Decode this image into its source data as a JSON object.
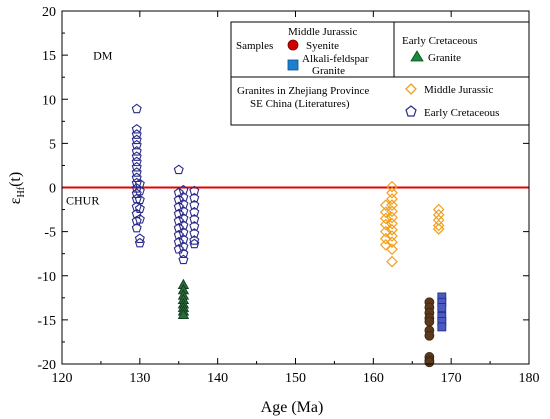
{
  "chart_data": {
    "type": "scatter",
    "xlabel": "Age (Ma)",
    "ylabel_main": "ε",
    "ylabel_sub": "Hf",
    "ylabel_tail": "(t)",
    "xlim": [
      120,
      180
    ],
    "ylim": [
      -20,
      20
    ],
    "x_ticks": [
      120,
      130,
      140,
      150,
      160,
      170,
      180
    ],
    "y_ticks": [
      -20,
      -15,
      -10,
      -5,
      0,
      5,
      10,
      15,
      20
    ],
    "grid": false,
    "chur_line": {
      "y": 0,
      "label": "CHUR",
      "color": "#e60000"
    },
    "annotations": [
      {
        "id": "dm",
        "text": "DM",
        "x": 124,
        "y": 14.5
      }
    ],
    "legend": {
      "placement": "top-right",
      "samples_title": "Samples",
      "middle_jurassic_title": "Middle Jurassic",
      "syenite_label": "Syenite",
      "alkali_label_line1": "Alkali-feldspar",
      "alkali_label_line2": "Granite",
      "early_cretaceous_title": "Early Cretaceous",
      "granite_label": "Granite",
      "literature_line1": "Granites in Zhejiang Province",
      "literature_line2": "SE China (Literatures)",
      "lit_mj_label": "Middle Jurassic",
      "lit_ec_label": "Early Cretaceous"
    },
    "series": [
      {
        "name": "Syenite",
        "marker": "circle",
        "color": "#cc0000",
        "points": [
          [
            167.2,
            -13.0
          ],
          [
            167.2,
            -13.6
          ],
          [
            167.2,
            -14.2
          ],
          [
            167.2,
            -14.8
          ],
          [
            167.2,
            -15.2
          ],
          [
            167.2,
            -16.2
          ],
          [
            167.2,
            -16.8
          ],
          [
            167.2,
            -19.2
          ],
          [
            167.2,
            -19.6
          ],
          [
            167.2,
            -19.8
          ]
        ]
      },
      {
        "name": "Alkali-feldspar Granite",
        "marker": "square",
        "color": "#1a7fd0",
        "points": [
          [
            168.8,
            -12.4
          ],
          [
            168.8,
            -13.0
          ],
          [
            168.8,
            -13.6
          ],
          [
            168.8,
            -14.6
          ],
          [
            168.8,
            -15.2
          ],
          [
            168.8,
            -15.8
          ]
        ]
      },
      {
        "name": "Granite",
        "marker": "triangle",
        "color": "#1a8a3a",
        "points": [
          [
            135.6,
            -11.0
          ],
          [
            135.6,
            -11.6
          ],
          [
            135.6,
            -12.2
          ],
          [
            135.6,
            -12.7
          ],
          [
            135.6,
            -13.2
          ],
          [
            135.6,
            -13.6
          ],
          [
            135.6,
            -14.0
          ],
          [
            135.6,
            -14.4
          ]
        ]
      },
      {
        "name": "Middle Jurassic",
        "marker": "diamond",
        "color": "#f0a020",
        "points": [
          [
            161.6,
            -2.0
          ],
          [
            161.6,
            -2.8
          ],
          [
            161.6,
            -3.5
          ],
          [
            161.6,
            -4.2
          ],
          [
            161.6,
            -5.0
          ],
          [
            161.6,
            -5.8
          ],
          [
            161.6,
            -6.5
          ],
          [
            162.4,
            0.1
          ],
          [
            162.4,
            -0.6
          ],
          [
            162.4,
            -1.3
          ],
          [
            162.4,
            -2.0
          ],
          [
            162.4,
            -2.7
          ],
          [
            162.4,
            -3.4
          ],
          [
            162.4,
            -4.1
          ],
          [
            162.4,
            -4.8
          ],
          [
            162.4,
            -5.5
          ],
          [
            162.4,
            -6.2
          ],
          [
            162.4,
            -7.0
          ],
          [
            162.4,
            -8.4
          ],
          [
            168.4,
            -2.5
          ],
          [
            168.4,
            -3.1
          ],
          [
            168.4,
            -3.7
          ],
          [
            168.4,
            -4.3
          ],
          [
            168.4,
            -4.7
          ]
        ]
      },
      {
        "name": "Early Cretaceous",
        "marker": "pentagon",
        "color": "#2a2a8a",
        "points": [
          [
            129.6,
            8.9
          ],
          [
            129.6,
            6.6
          ],
          [
            129.6,
            6.0
          ],
          [
            129.6,
            5.4
          ],
          [
            129.6,
            4.8
          ],
          [
            129.6,
            4.1
          ],
          [
            129.6,
            3.5
          ],
          [
            129.6,
            2.9
          ],
          [
            129.6,
            2.3
          ],
          [
            129.6,
            1.7
          ],
          [
            129.6,
            1.1
          ],
          [
            129.6,
            0.5
          ],
          [
            129.6,
            -0.1
          ],
          [
            129.6,
            -0.7
          ],
          [
            129.6,
            -1.3
          ],
          [
            129.6,
            -2.2
          ],
          [
            129.6,
            -3.0
          ],
          [
            129.6,
            -3.8
          ],
          [
            129.6,
            -4.6
          ],
          [
            130.0,
            0.4
          ],
          [
            130.0,
            -0.4
          ],
          [
            130.0,
            -1.4
          ],
          [
            130.0,
            -2.4
          ],
          [
            130.0,
            -3.6
          ],
          [
            130.0,
            -5.8
          ],
          [
            130.0,
            -6.3
          ],
          [
            135.0,
            2.0
          ],
          [
            135.0,
            -0.6
          ],
          [
            135.0,
            -1.4
          ],
          [
            135.0,
            -2.2
          ],
          [
            135.0,
            -3.0
          ],
          [
            135.0,
            -3.8
          ],
          [
            135.0,
            -4.6
          ],
          [
            135.0,
            -5.4
          ],
          [
            135.0,
            -6.2
          ],
          [
            135.0,
            -7.0
          ],
          [
            135.6,
            -0.3
          ],
          [
            135.6,
            -1.1
          ],
          [
            135.6,
            -1.9
          ],
          [
            135.6,
            -2.7
          ],
          [
            135.6,
            -3.5
          ],
          [
            135.6,
            -4.3
          ],
          [
            135.6,
            -5.1
          ],
          [
            135.6,
            -5.9
          ],
          [
            135.6,
            -6.7
          ],
          [
            135.6,
            -7.5
          ],
          [
            135.6,
            -8.2
          ],
          [
            137.0,
            -0.4
          ],
          [
            137.0,
            -1.2
          ],
          [
            137.0,
            -2.0
          ],
          [
            137.0,
            -2.8
          ],
          [
            137.0,
            -3.6
          ],
          [
            137.0,
            -4.4
          ],
          [
            137.0,
            -5.2
          ],
          [
            137.0,
            -6.0
          ],
          [
            137.0,
            -6.4
          ]
        ]
      }
    ]
  }
}
